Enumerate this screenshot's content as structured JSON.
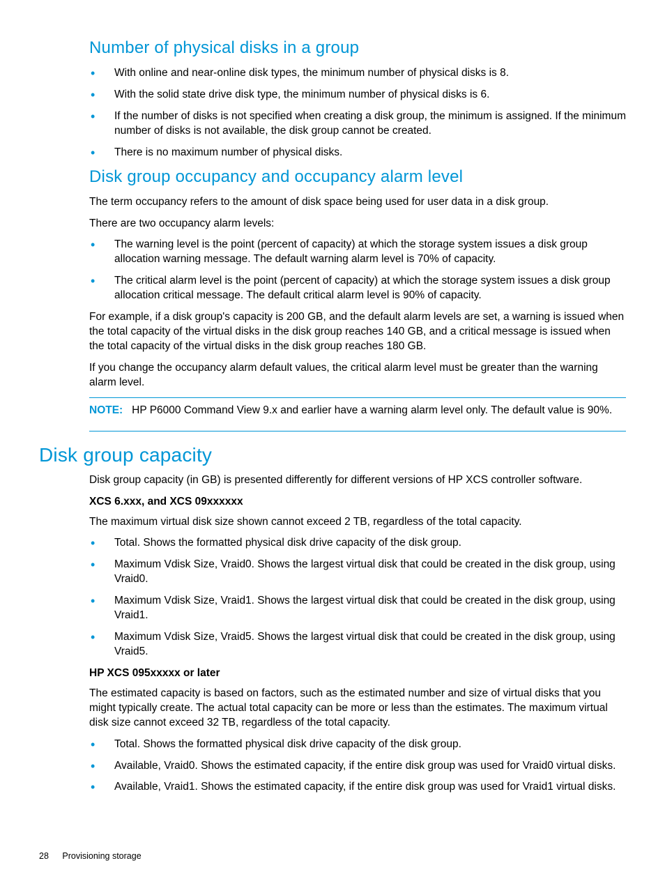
{
  "section1": {
    "heading": "Number of physical disks in a group",
    "bullets": [
      "With online and near-online disk types, the minimum number of physical disks is 8.",
      "With the solid state drive disk type, the minimum number of physical disks is 6.",
      "If the number of disks is not specified when creating a disk group, the minimum is assigned. If the minimum number of disks is not available, the disk group cannot be created.",
      "There is no maximum number of physical disks."
    ]
  },
  "section2": {
    "heading": "Disk group occupancy and occupancy alarm level",
    "p1": "The term occupancy refers to the amount of disk space being used for user data in a disk group.",
    "p2": "There are two occupancy alarm levels:",
    "bullets": [
      "The warning level is the point (percent of capacity) at which the storage system issues a disk group allocation warning message. The default warning alarm level is 70% of capacity.",
      "The critical alarm level is the point (percent of capacity) at which the storage system issues a disk group allocation critical message. The default critical alarm level is 90% of capacity."
    ],
    "p3": "For example, if a disk group's capacity is 200 GB, and the default alarm levels are set, a warning is issued when the total capacity of the virtual disks in the disk group reaches 140 GB, and a critical message is issued when the total capacity of the virtual disks in the disk group reaches 180 GB.",
    "p4": "If you change the occupancy alarm default values, the critical alarm level must be greater than the warning alarm level.",
    "note_label": "NOTE:",
    "note_text": "HP P6000 Command View 9.x and earlier have a warning alarm level only. The default value is 90%."
  },
  "section3": {
    "heading": "Disk group capacity",
    "p1": "Disk group capacity (in GB) is presented differently for different versions of HP XCS controller software.",
    "sub1_title": "XCS 6.xxx, and XCS 09xxxxxx",
    "sub1_p": "The maximum virtual disk size shown cannot exceed 2 TB, regardless of the total capacity.",
    "sub1_bullets": [
      "Total. Shows the formatted physical disk drive capacity of the disk group.",
      "Maximum Vdisk Size, Vraid0. Shows the largest virtual disk that could be created in the disk group, using Vraid0.",
      "Maximum Vdisk Size, Vraid1. Shows the largest virtual disk that could be created in the disk group, using Vraid1.",
      "Maximum Vdisk Size, Vraid5. Shows the largest virtual disk that could be created in the disk group, using Vraid5."
    ],
    "sub2_title": "HP XCS 095xxxxx or later",
    "sub2_p": "The estimated capacity is based on factors, such as the estimated number and size of virtual disks that you might typically create. The actual total capacity can be more or less than the estimates. The maximum virtual disk size cannot exceed 32 TB, regardless of the total capacity.",
    "sub2_bullets": [
      "Total. Shows the formatted physical disk drive capacity of the disk group.",
      "Available, Vraid0. Shows the estimated capacity, if the entire disk group was used for Vraid0 virtual disks.",
      "Available, Vraid1. Shows the estimated capacity, if the entire disk group was used for Vraid1 virtual disks."
    ]
  },
  "footer": {
    "page_number": "28",
    "chapter": "Provisioning storage"
  }
}
